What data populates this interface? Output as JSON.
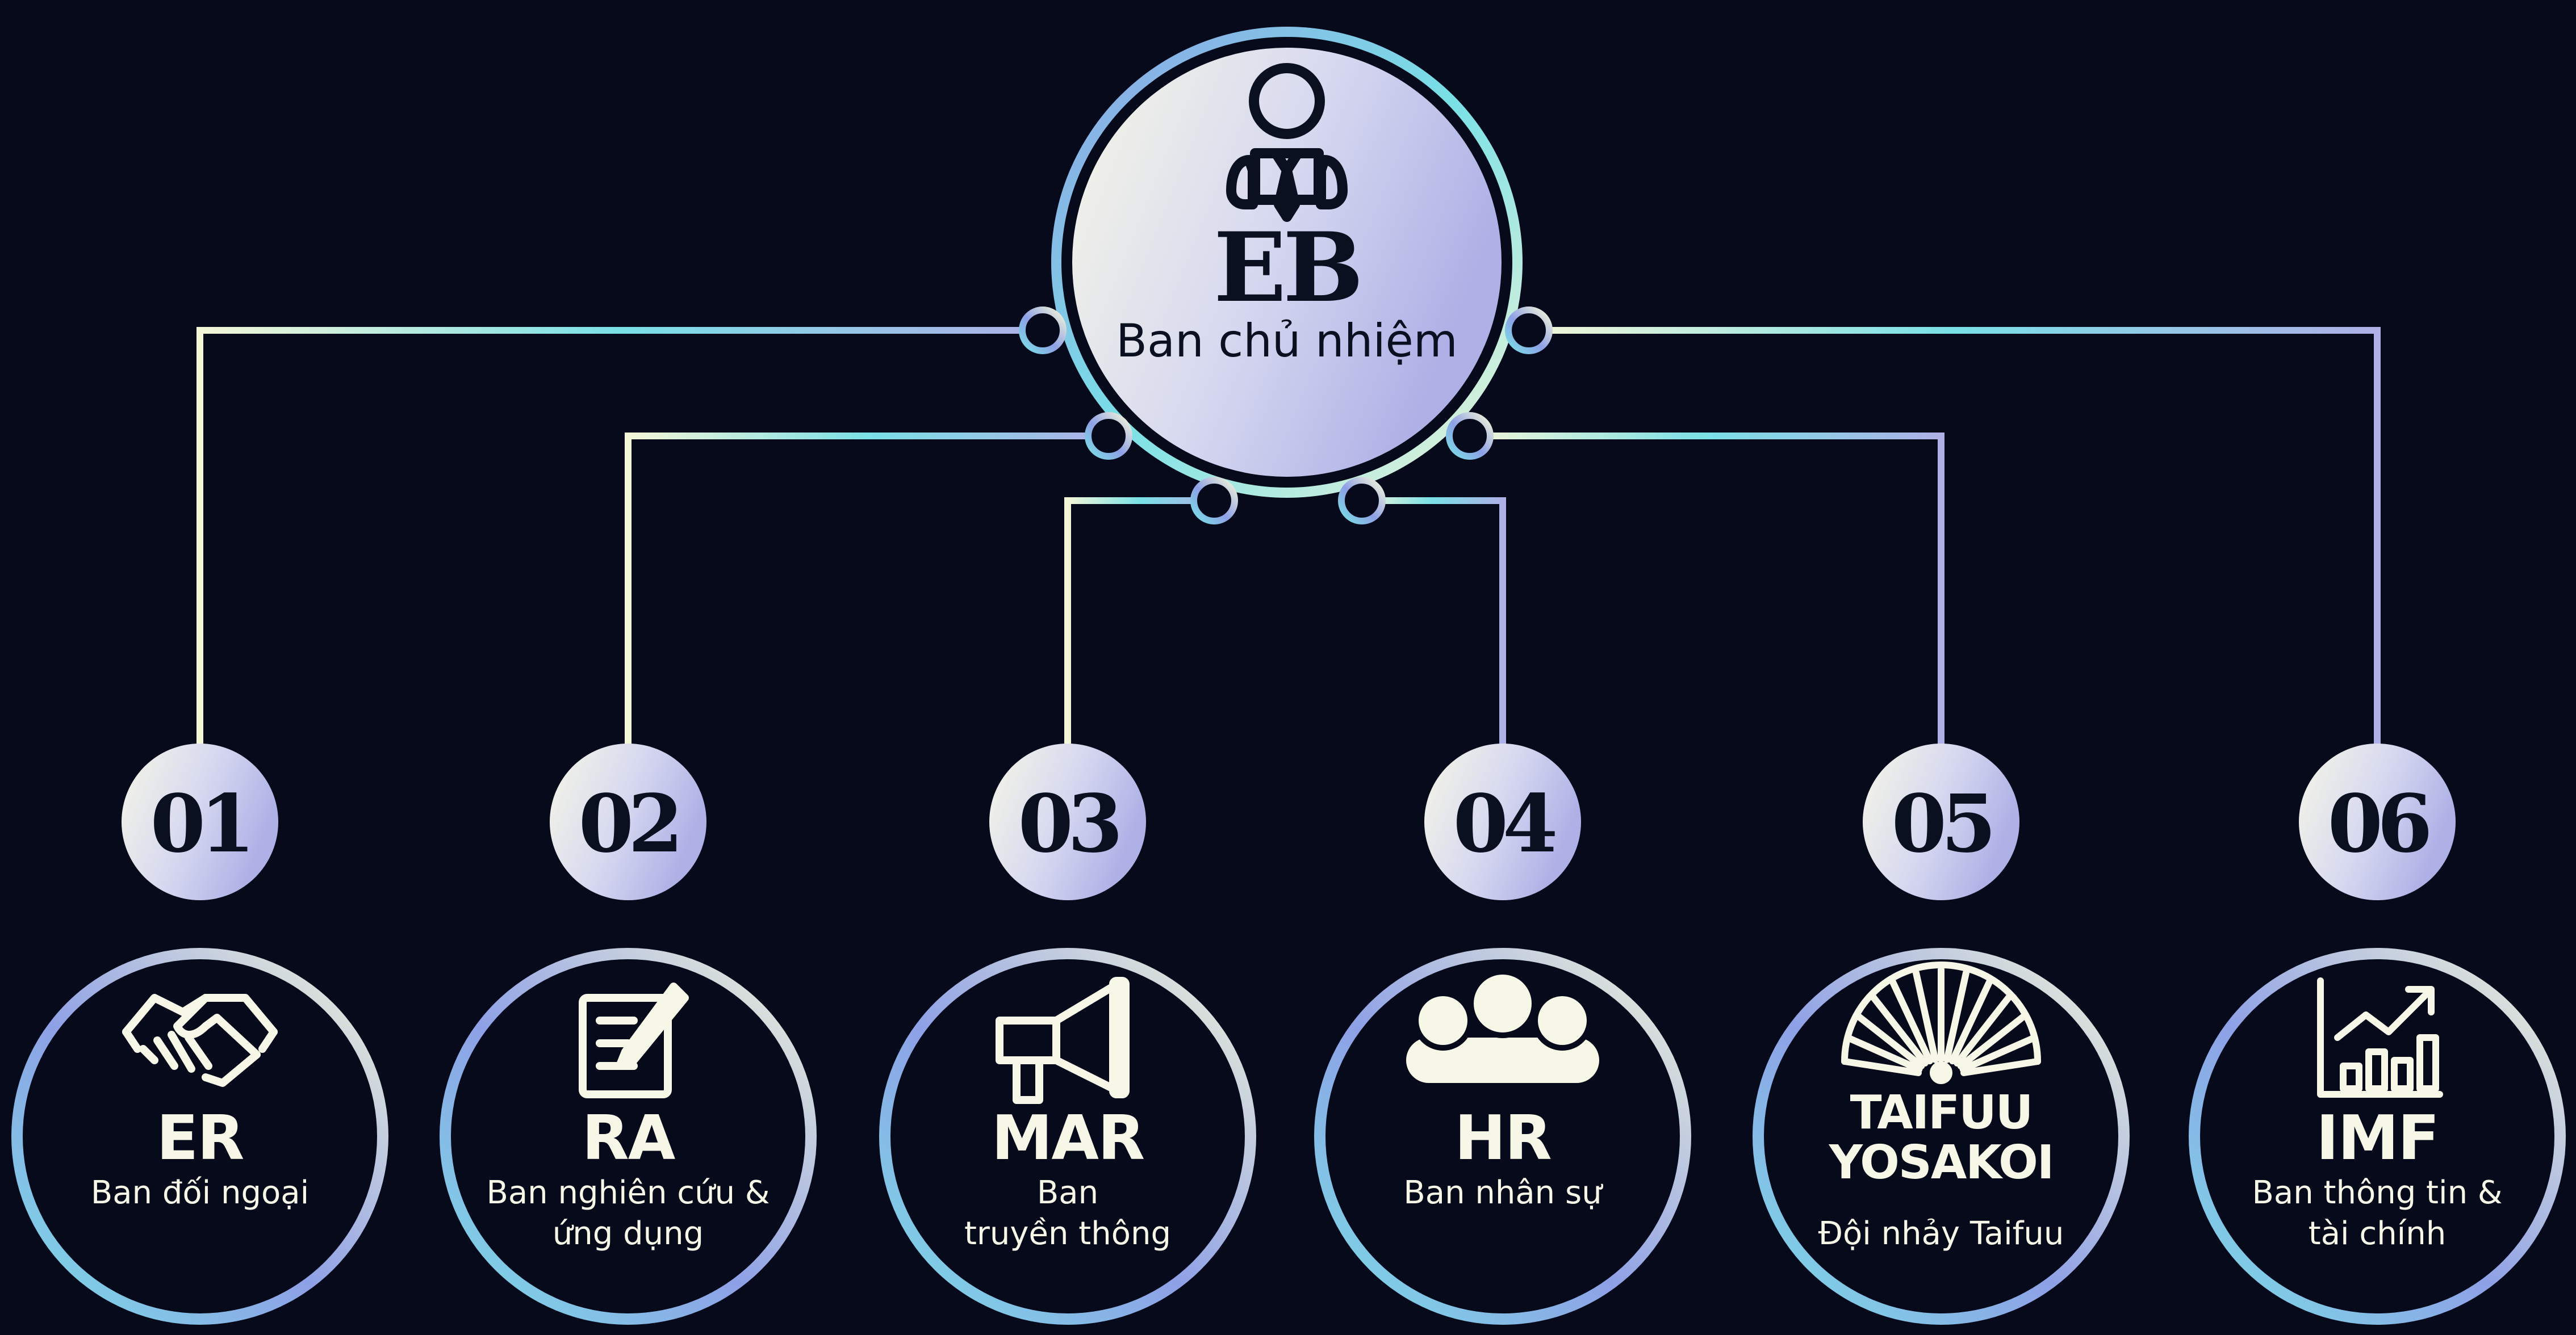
{
  "root": {
    "code": "EB",
    "name": "Ban chủ nhiệm",
    "icon": "leader-person-icon"
  },
  "departments": [
    {
      "number": "01",
      "code": "ER",
      "name": [
        "Ban đối ngoại"
      ],
      "icon": "handshake-icon"
    },
    {
      "number": "02",
      "code": "RA",
      "name": [
        "Ban nghiên cứu &",
        "ứng dụng"
      ],
      "icon": "document-pen-icon"
    },
    {
      "number": "03",
      "code": "MAR",
      "name": [
        "Ban",
        "truyền thông"
      ],
      "icon": "megaphone-icon"
    },
    {
      "number": "04",
      "code": "HR",
      "name": [
        "Ban nhân sự"
      ],
      "icon": "people-group-icon"
    },
    {
      "number": "05",
      "code": [
        "TAIFUU",
        "YOSAKOI"
      ],
      "name": [
        "Đội nhảy Taifuu"
      ],
      "icon": "folding-fan-icon"
    },
    {
      "number": "06",
      "code": "IMF",
      "name": [
        "Ban thông tin &",
        "tài chính"
      ],
      "icon": "growth-chart-icon"
    }
  ],
  "colors": {
    "background": "#060a1a",
    "ring_blue": "#8ea0e6",
    "ring_cyan": "#79e0e6",
    "ring_cream": "#f4f6d8",
    "fill_cream": "#f6f7e6",
    "fill_lavender": "#aeb0e6",
    "text_dark": "#0b1020",
    "text_light": "#f7f7e8"
  }
}
